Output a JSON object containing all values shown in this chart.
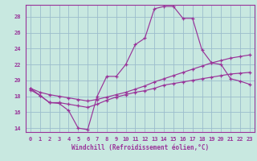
{
  "xlabel": "Windchill (Refroidissement éolien,°C)",
  "background_color": "#c8e8e0",
  "grid_color": "#9bbccc",
  "line_color": "#993399",
  "xlim": [
    -0.5,
    23.5
  ],
  "ylim": [
    13.5,
    29.5
  ],
  "yticks": [
    14,
    16,
    18,
    20,
    22,
    24,
    26,
    28
  ],
  "xticks": [
    0,
    1,
    2,
    3,
    4,
    5,
    6,
    7,
    8,
    9,
    10,
    11,
    12,
    13,
    14,
    15,
    16,
    17,
    18,
    19,
    20,
    21,
    22,
    23
  ],
  "line1_x": [
    0,
    1,
    2,
    3,
    4,
    5,
    6,
    7,
    8,
    9,
    10,
    11,
    12,
    13,
    14,
    15,
    16,
    17,
    18,
    19,
    20,
    21,
    22,
    23
  ],
  "line1_y": [
    19.0,
    18.1,
    17.2,
    17.1,
    16.2,
    14.0,
    13.8,
    18.0,
    20.5,
    20.5,
    22.0,
    24.5,
    25.3,
    29.0,
    29.3,
    29.3,
    27.8,
    27.8,
    23.8,
    22.2,
    22.0,
    20.2,
    19.9,
    19.5
  ],
  "line2_x": [
    0,
    1,
    2,
    3,
    4,
    5,
    6,
    7,
    8,
    9,
    10,
    11,
    12,
    13,
    14,
    15,
    16,
    17,
    18,
    19,
    20,
    21,
    22,
    23
  ],
  "line2_y": [
    19.0,
    18.5,
    18.2,
    18.0,
    17.8,
    17.6,
    17.4,
    17.6,
    17.9,
    18.2,
    18.5,
    18.9,
    19.3,
    19.8,
    20.2,
    20.6,
    21.0,
    21.4,
    21.8,
    22.2,
    22.5,
    22.8,
    23.0,
    23.2
  ],
  "line3_x": [
    0,
    1,
    2,
    3,
    4,
    5,
    6,
    7,
    8,
    9,
    10,
    11,
    12,
    13,
    14,
    15,
    16,
    17,
    18,
    19,
    20,
    21,
    22,
    23
  ],
  "line3_y": [
    18.8,
    18.1,
    17.2,
    17.2,
    17.0,
    16.8,
    16.6,
    17.0,
    17.5,
    17.9,
    18.2,
    18.5,
    18.7,
    19.0,
    19.4,
    19.6,
    19.8,
    20.0,
    20.2,
    20.4,
    20.6,
    20.8,
    20.9,
    21.0
  ]
}
